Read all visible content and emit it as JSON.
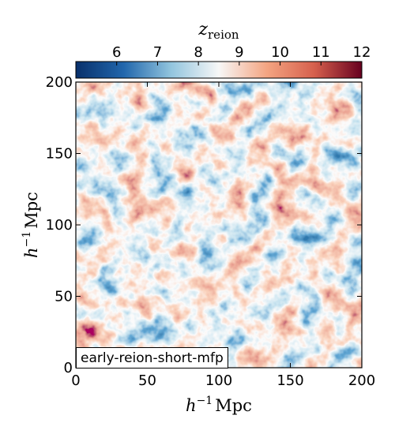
{
  "chart_data": {
    "type": "heatmap",
    "colorbar": {
      "label_main": "z",
      "label_sub": "reion",
      "range": [
        5,
        12
      ],
      "ticks": [
        "6",
        "7",
        "8",
        "9",
        "10",
        "11",
        "12"
      ],
      "tick_values": [
        6,
        7,
        8,
        9,
        10,
        11,
        12
      ],
      "colormap": "RdBu_r",
      "colors": [
        "#08306b",
        "#2166ac",
        "#92c5de",
        "#f7f7f7",
        "#f4a582",
        "#d6604d",
        "#67001f"
      ]
    },
    "xaxis": {
      "label_base": "h",
      "label_sup": "−1",
      "label_unit": "Mpc",
      "range": [
        0,
        200
      ],
      "ticks": [
        "0",
        "50",
        "100",
        "150",
        "200"
      ],
      "tick_values": [
        0,
        50,
        100,
        150,
        200
      ]
    },
    "yaxis": {
      "label_base": "h",
      "label_sup": "−1",
      "label_unit": "Mpc",
      "range": [
        0,
        200
      ],
      "ticks": [
        "0",
        "50",
        "100",
        "150",
        "200"
      ],
      "tick_values": [
        0,
        50,
        100,
        150,
        200
      ]
    },
    "panel_label": "early-reion-short-mfp"
  }
}
